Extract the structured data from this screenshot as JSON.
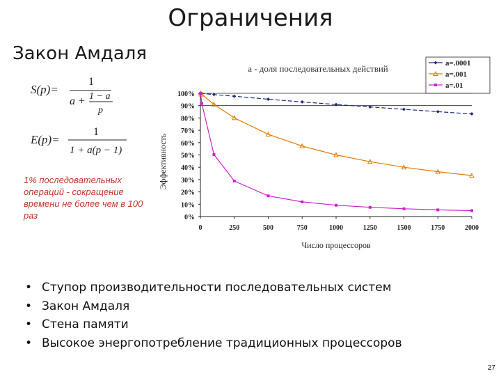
{
  "slide": {
    "title": "Ограничения",
    "subtitle": "Закон Амдаля",
    "note": "1% последовательных операций - сокращение времени не более чем в 100 раз",
    "page_number": "27"
  },
  "formulas": {
    "s_lhs": "S(p)=",
    "s_num": "1",
    "s_den_a": "a +",
    "s_den_frac_num": "1 − a",
    "s_den_frac_den": "p",
    "e_lhs": "E(p)=",
    "e_num": "1",
    "e_den": "1 + a(p − 1)"
  },
  "bullets": [
    "Ступор производительности последовательных систем",
    "Закон Амдаля",
    "Стена памяти",
    "Высокое энергопотребление традиционных процессоров"
  ],
  "chart_data": {
    "type": "line",
    "title": "a - доля последовательных действий",
    "xlabel": "Число процессоров",
    "ylabel": "Эффективность",
    "xlim": [
      0,
      2000
    ],
    "ylim": [
      0,
      100
    ],
    "x_ticks": [
      0,
      250,
      500,
      750,
      1000,
      1250,
      1500,
      1750,
      2000
    ],
    "x_tick_labels": [
      "0",
      "250",
      "500",
      "750",
      "1000",
      "1250",
      "1500",
      "1750",
      "2000"
    ],
    "y_ticks": [
      0,
      10,
      20,
      30,
      40,
      50,
      60,
      70,
      80,
      90,
      100
    ],
    "y_tick_labels": [
      "0%",
      "10%",
      "20%",
      "30%",
      "40%",
      "50%",
      "60%",
      "70%",
      "80%",
      "90%",
      "100%"
    ],
    "reference_lines_y": [
      90,
      100
    ],
    "legend_position": "top-right",
    "x": [
      1,
      10,
      100,
      250,
      500,
      750,
      1000,
      1250,
      1500,
      1750,
      2000
    ],
    "series": [
      {
        "name": "a=.0001",
        "color": "#1f2a7a",
        "marker": "diamond",
        "values": [
          100,
          99.9,
          99.0,
          97.6,
          95.2,
          93.0,
          90.9,
          88.9,
          87.0,
          85.1,
          83.3
        ]
      },
      {
        "name": "a=.001",
        "color": "#e07b00",
        "marker": "triangle",
        "values": [
          100,
          99.1,
          91.0,
          80.0,
          66.7,
          57.2,
          50.0,
          44.5,
          40.0,
          36.4,
          33.3
        ]
      },
      {
        "name": "a=.01",
        "color": "#cc22cc",
        "marker": "square",
        "values": [
          100,
          91.7,
          50.3,
          28.8,
          16.8,
          11.9,
          9.2,
          7.5,
          6.3,
          5.4,
          4.8
        ]
      }
    ]
  }
}
